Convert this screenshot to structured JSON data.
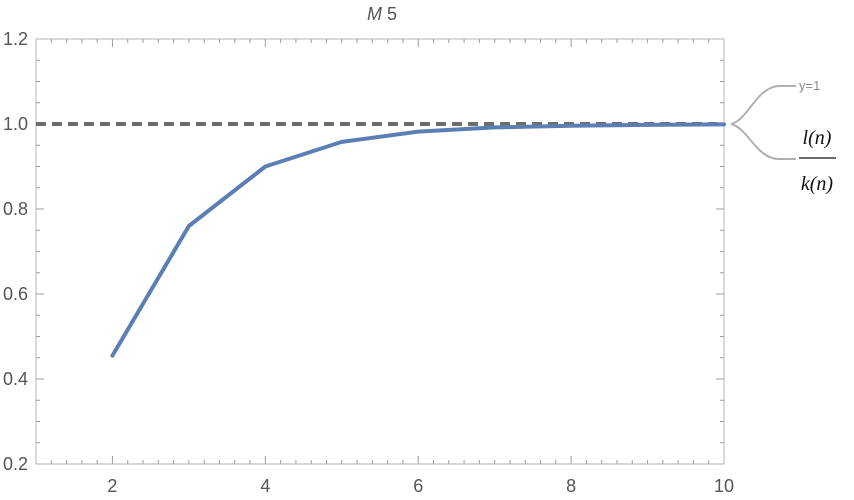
{
  "chart_data": {
    "type": "line",
    "title_parts": {
      "symbol": "M",
      "number": "5"
    },
    "xlim": [
      1,
      10
    ],
    "ylim": [
      0.2,
      1.2
    ],
    "x_ticks": [
      2,
      4,
      6,
      8,
      10
    ],
    "y_ticks": [
      0.2,
      0.4,
      0.6,
      0.8,
      1.0,
      1.2
    ],
    "x_tick_labels": [
      "2",
      "4",
      "6",
      "8",
      "10"
    ],
    "y_tick_labels": [
      "0.2",
      "0.4",
      "0.6",
      "0.8",
      "1.0",
      "1.2"
    ],
    "x_minor_step": 0.2,
    "y_minor_step": 0.05,
    "grid": false,
    "legend_placement": "right",
    "series": [
      {
        "name": "y=1",
        "style": "dashed",
        "color": "#6d6d6d",
        "x": [
          1,
          10
        ],
        "values": [
          1.0,
          1.0
        ]
      },
      {
        "name": "l(n)/k(n)",
        "name_numerator": "l(n)",
        "name_denominator": "k(n)",
        "style": "solid",
        "color": "#5b7fb4",
        "x": [
          2,
          3,
          4,
          5,
          6,
          7,
          8,
          9,
          10
        ],
        "values": [
          0.455,
          0.76,
          0.9,
          0.958,
          0.982,
          0.992,
          0.996,
          0.998,
          0.999
        ]
      }
    ]
  },
  "colors": {
    "frame": "#b3b3b3",
    "tick": "#9a9a9a",
    "legend_line": "#b0b0b0"
  }
}
